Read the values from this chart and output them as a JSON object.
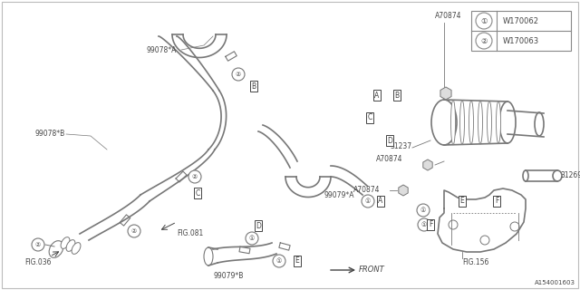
{
  "bg_color": "#ffffff",
  "line_color": "#777777",
  "text_color": "#444444",
  "border_color": "#888888",
  "diagram_id": "A154001603",
  "legend": [
    {
      "symbol": "①",
      "code": "W170062"
    },
    {
      "symbol": "②",
      "code": "W170063"
    }
  ]
}
